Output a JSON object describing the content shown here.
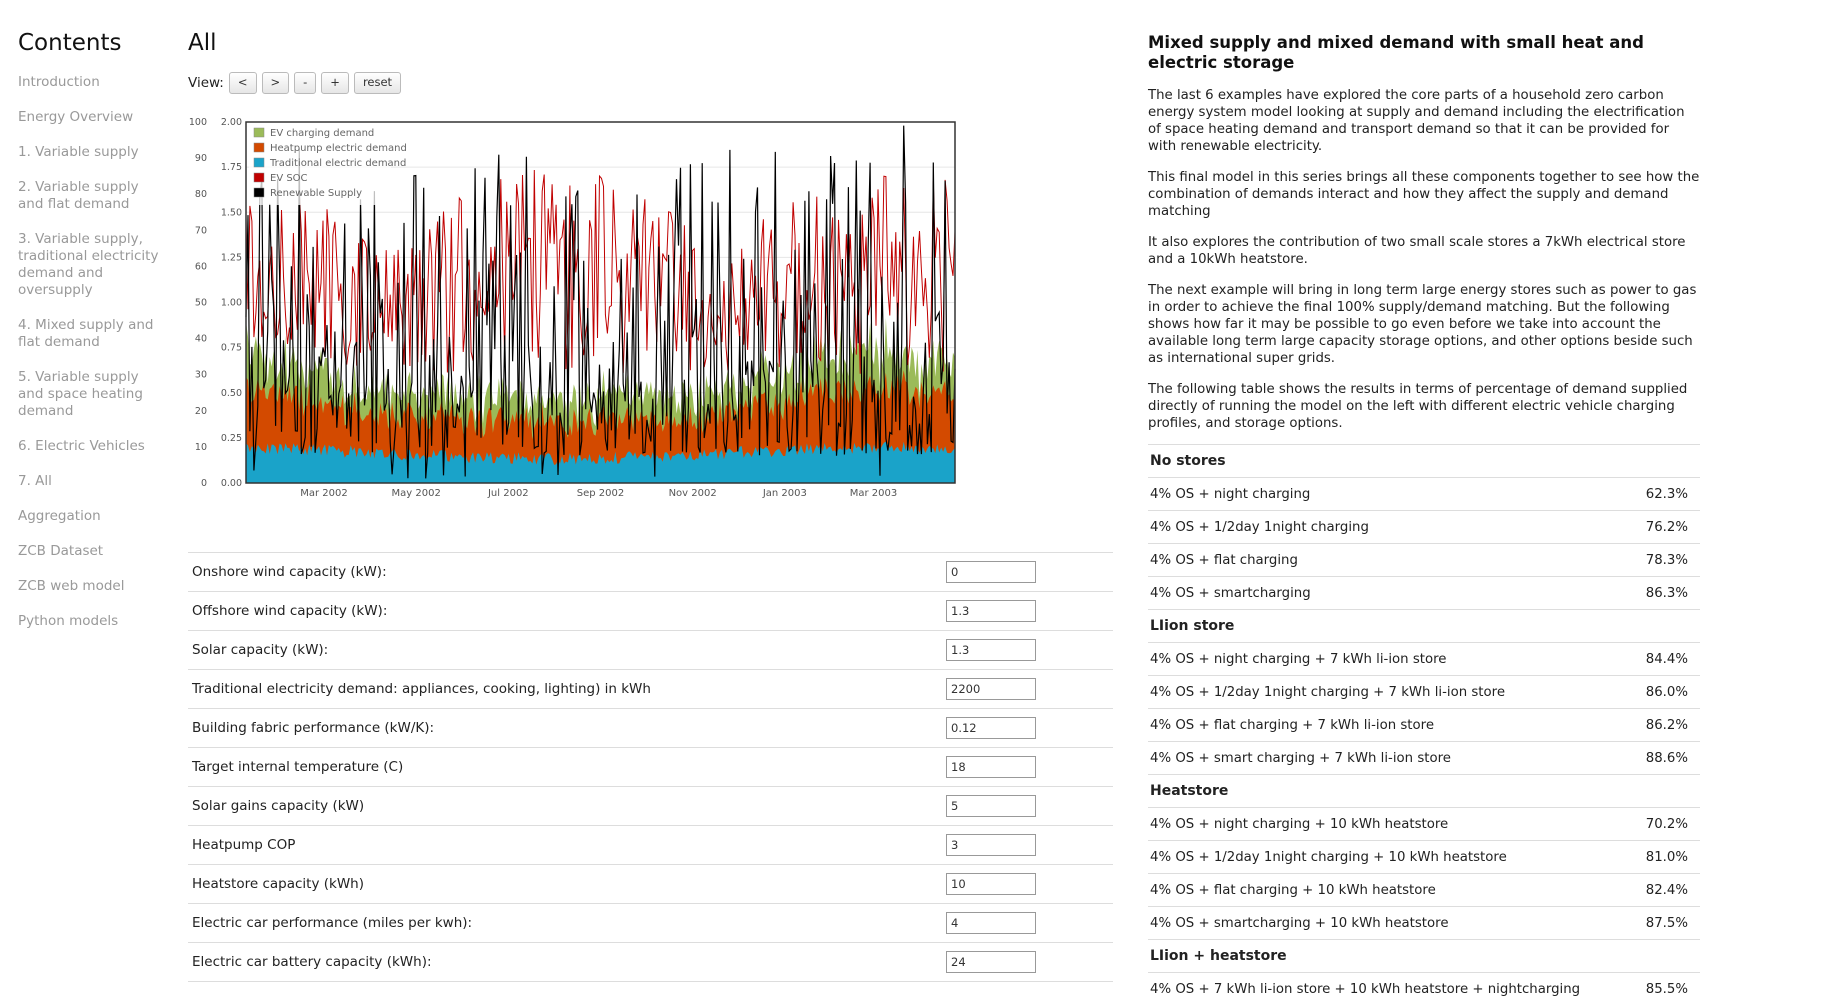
{
  "sidebar": {
    "title": "Contents",
    "items": [
      "Introduction",
      "Energy Overview",
      "1. Variable supply",
      "2. Variable supply and flat demand",
      "3. Variable supply, traditional electricity demand and oversupply",
      "4. Mixed supply and flat demand",
      "5. Variable supply and space heating demand",
      "6. Electric Vehicles",
      "7. All",
      "Aggregation",
      "ZCB Dataset",
      "ZCB web model",
      "Python models"
    ]
  },
  "main": {
    "title": "All",
    "view_label": "View:",
    "view_buttons": [
      "<",
      ">",
      "-",
      "+",
      "reset"
    ]
  },
  "chart_data": {
    "type": "area",
    "x_ticks": [
      "Mar 2002",
      "May 2002",
      "Jul 2002",
      "Sep 2002",
      "Nov 2002",
      "Jan 2003",
      "Mar 2003"
    ],
    "y_left_ticks": [
      0,
      10,
      20,
      30,
      40,
      50,
      60,
      70,
      80,
      90,
      100
    ],
    "y_right_ticks": [
      "0.00",
      "0.25",
      "0.50",
      "0.75",
      "1.00",
      "1.25",
      "1.50",
      "1.75",
      "2.00"
    ],
    "ylim_left": [
      0,
      100
    ],
    "ylim_right": [
      0,
      2.0
    ],
    "legend_position": "top-left",
    "series": [
      {
        "name": "EV charging demand",
        "color": "#9bbb59",
        "stack_level": 0.75
      },
      {
        "name": "Heatpump electric demand",
        "color": "#d34a00",
        "stack_level": 0.55
      },
      {
        "name": "Traditional electric demand",
        "color": "#1aa3c9",
        "stack_level": 0.22
      },
      {
        "name": "EV SOC",
        "color": "#c00000",
        "level": 1.4
      },
      {
        "name": "Renewable Supply",
        "color": "#000000",
        "level": 0.95
      }
    ]
  },
  "inputs": [
    {
      "label": "Onshore wind capacity (kW):",
      "value": "0"
    },
    {
      "label": "Offshore wind capacity (kW):",
      "value": "1.3"
    },
    {
      "label": "Solar capacity (kW):",
      "value": "1.3"
    },
    {
      "label": "Traditional electricity demand: appliances, cooking, lighting) in kWh",
      "value": "2200"
    },
    {
      "label": "Building fabric performance (kW/K):",
      "value": "0.12"
    },
    {
      "label": "Target internal temperature (C)",
      "value": "18"
    },
    {
      "label": "Solar gains capacity (kW)",
      "value": "5"
    },
    {
      "label": "Heatpump COP",
      "value": "3"
    },
    {
      "label": "Heatstore capacity (kWh)",
      "value": "10"
    },
    {
      "label": "Electric car performance (miles per kwh):",
      "value": "4"
    },
    {
      "label": "Electric car battery capacity (kWh):",
      "value": "24"
    }
  ],
  "right": {
    "title": "Mixed supply and mixed demand with small heat and electric storage",
    "paragraphs": [
      "The last 6 examples have explored the core parts of a household zero carbon energy system model looking at supply and demand including the electrification of space heating demand and transport demand so that it can be provided for with renewable electricity.",
      "This final model in this series brings all these components together to see how the combination of demands interact and how they affect the supply and demand matching",
      "It also explores the contribution of two small scale stores a 7kWh electrical store and a 10kWh heatstore.",
      "The next example will bring in long term large energy stores such as power to gas in order to achieve the final 100% supply/demand matching. But the following shows how far it may be possible to go even before we take into account the available long term large capacity storage options, and other options beside such as international super grids.",
      "The following table shows the results in terms of percentage of demand supplied directly of running the model on the left with different electric vehicle charging profiles, and storage options."
    ],
    "table": [
      {
        "group": "No stores",
        "rows": [
          [
            "4% OS + night charging",
            "62.3%"
          ],
          [
            "4% OS + 1/2day 1night charging",
            "76.2%"
          ],
          [
            "4% OS + flat charging",
            "78.3%"
          ],
          [
            "4% OS + smartcharging",
            "86.3%"
          ]
        ]
      },
      {
        "group": "LIion store",
        "rows": [
          [
            "4% OS + night charging + 7 kWh li-ion store",
            "84.4%"
          ],
          [
            "4% OS + 1/2day 1night charging + 7 kWh li-ion store",
            "86.0%"
          ],
          [
            "4% OS + flat charging + 7 kWh li-ion store",
            "86.2%"
          ],
          [
            "4% OS + smart charging + 7 kWh li-ion store",
            "88.6%"
          ]
        ]
      },
      {
        "group": "Heatstore",
        "rows": [
          [
            "4% OS + night charging + 10 kWh heatstore",
            "70.2%"
          ],
          [
            "4% OS + 1/2day 1night charging + 10 kWh heatstore",
            "81.0%"
          ],
          [
            "4% OS + flat charging + 10 kWh heatstore",
            "82.4%"
          ],
          [
            "4% OS + smartcharging + 10 kWh heatstore",
            "87.5%"
          ]
        ]
      },
      {
        "group": "LIion + heatstore",
        "rows": [
          [
            "4% OS + 7 kWh li-ion store + 10 kWh heatstore + nightcharging",
            "85.5%"
          ]
        ]
      }
    ]
  }
}
